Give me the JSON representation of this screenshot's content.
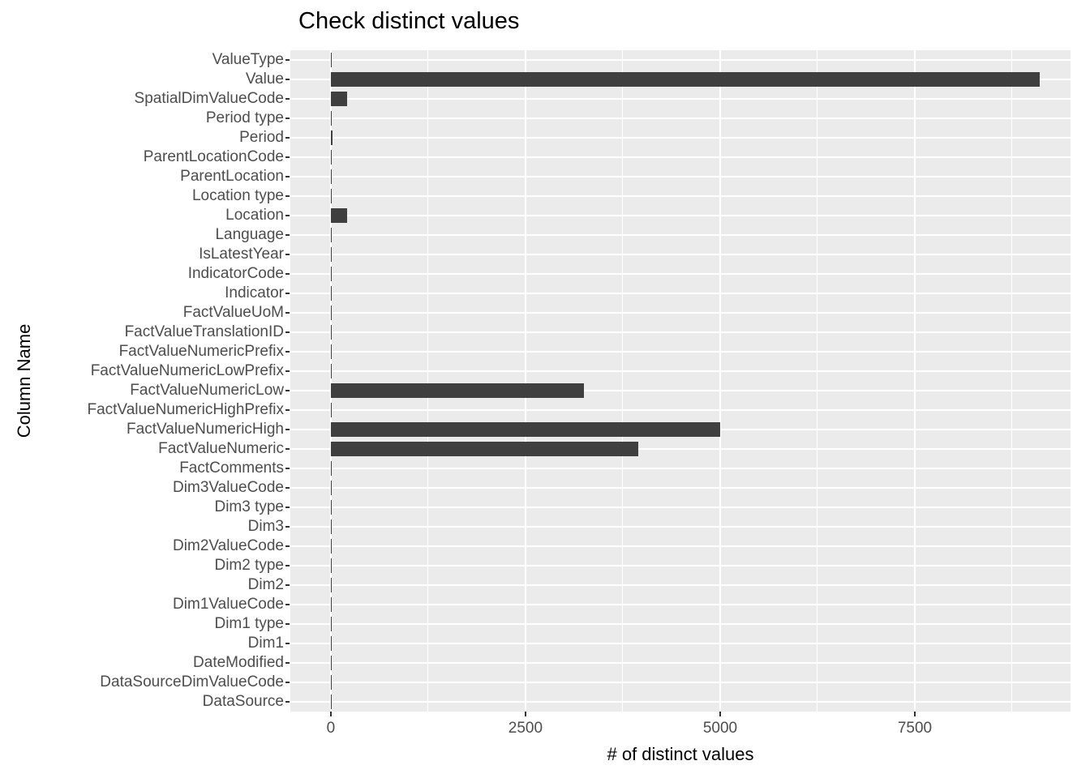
{
  "chart_data": {
    "type": "bar",
    "orientation": "horizontal",
    "title": "Check distinct values",
    "xlabel": "# of distinct values",
    "ylabel": "Column Name",
    "categories": [
      "ValueType",
      "Value",
      "SpatialDimValueCode",
      "Period type",
      "Period",
      "ParentLocationCode",
      "ParentLocation",
      "Location type",
      "Location",
      "Language",
      "IsLatestYear",
      "IndicatorCode",
      "Indicator",
      "FactValueUoM",
      "FactValueTranslationID",
      "FactValueNumericPrefix",
      "FactValueNumericLowPrefix",
      "FactValueNumericLow",
      "FactValueNumericHighPrefix",
      "FactValueNumericHigh",
      "FactValueNumeric",
      "FactComments",
      "Dim3ValueCode",
      "Dim3 type",
      "Dim3",
      "Dim2ValueCode",
      "Dim2 type",
      "Dim2",
      "Dim1ValueCode",
      "Dim1 type",
      "Dim1",
      "DateModified",
      "DataSourceDimValueCode",
      "DataSource"
    ],
    "values": [
      2,
      9100,
      210,
      1,
      25,
      7,
      7,
      2,
      210,
      1,
      2,
      1,
      1,
      2,
      2,
      2,
      2,
      3250,
      2,
      5000,
      3950,
      5,
      2,
      1,
      2,
      15,
      2,
      15,
      6,
      2,
      6,
      15,
      3,
      3
    ],
    "xlim": [
      -520,
      9500
    ],
    "x_ticks": [
      0,
      2500,
      5000,
      7500
    ],
    "x_minor_ticks": [
      1250,
      3750,
      6250,
      8750
    ],
    "grid": "on",
    "legend": "none"
  },
  "colors": {
    "bar": "#3F3F3F",
    "panel_bg": "#EBEBEB",
    "grid": "#FFFFFF",
    "axis_text": "#4D4D4D",
    "title_text": "#000000"
  }
}
